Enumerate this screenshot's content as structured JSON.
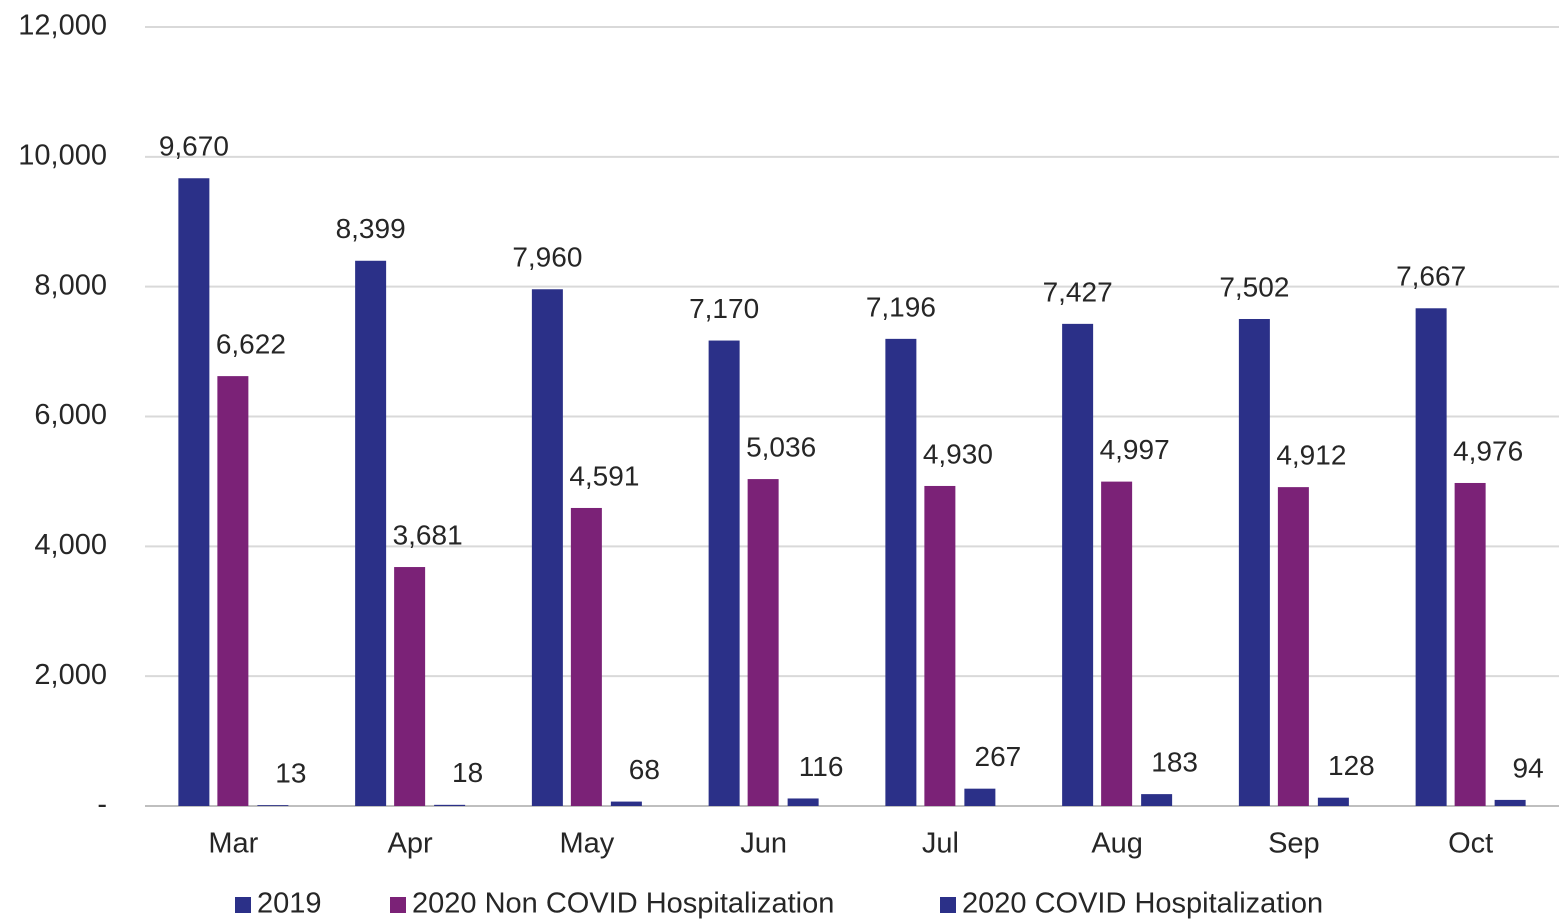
{
  "chart_data": {
    "type": "bar",
    "categories": [
      "Mar",
      "Apr",
      "May",
      "Jun",
      "Jul",
      "Aug",
      "Sep",
      "Oct"
    ],
    "series": [
      {
        "name": "2019",
        "color": "#2b3088",
        "values": [
          9670,
          8399,
          7960,
          7170,
          7196,
          7427,
          7502,
          7667
        ],
        "value_labels": [
          "9,670",
          "8,399",
          "7,960",
          "7,170",
          "7,196",
          "7,427",
          "7,502",
          "7,667"
        ]
      },
      {
        "name": "2020 Non COVID Hospitalization",
        "color": "#7b2277",
        "values": [
          6622,
          3681,
          4591,
          5036,
          4930,
          4997,
          4912,
          4976
        ],
        "value_labels": [
          "6,622",
          "3,681",
          "4,591",
          "5,036",
          "4,930",
          "4,997",
          "4,912",
          "4,976"
        ]
      },
      {
        "name": "2020 COVID Hospitalization",
        "color": "#2b3088",
        "values": [
          13,
          18,
          68,
          116,
          267,
          183,
          128,
          94
        ]
      }
    ],
    "ylim": [
      0,
      12000
    ],
    "yticks": [
      {
        "value": 0,
        "label": "-"
      },
      {
        "value": 2000,
        "label": "2,000"
      },
      {
        "value": 4000,
        "label": "4,000"
      },
      {
        "value": 6000,
        "label": "6,000"
      },
      {
        "value": 8000,
        "label": "8,000"
      },
      {
        "value": 10000,
        "label": "10,000"
      },
      {
        "value": 12000,
        "label": "12,000"
      }
    ],
    "grid": true,
    "legend": "bottom"
  }
}
